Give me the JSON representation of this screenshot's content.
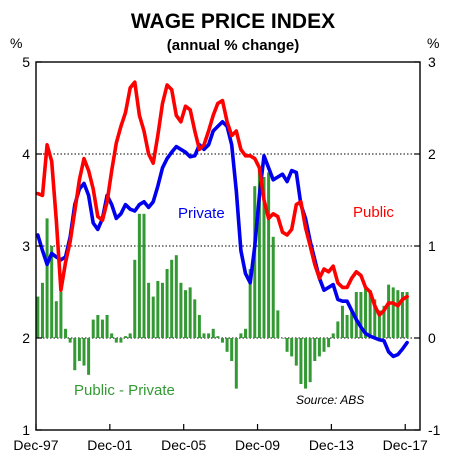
{
  "chart_data": {
    "type": "line",
    "title": "WAGE PRICE INDEX",
    "subtitle": "(annual % change)",
    "left_axis": {
      "unit": "%",
      "range": [
        1,
        5
      ],
      "ticks": [
        "1",
        "2",
        "3",
        "4",
        "5"
      ]
    },
    "right_axis": {
      "unit": "%",
      "range": [
        -1,
        3
      ],
      "ticks": [
        "-1",
        "0",
        "1",
        "2",
        "3"
      ]
    },
    "x_range": [
      1997.9,
      2018.7
    ],
    "x_ticks": [
      {
        "label": "Dec-97",
        "value": 1997.9
      },
      {
        "label": "Dec-01",
        "value": 2001.9
      },
      {
        "label": "Dec-05",
        "value": 2005.9
      },
      {
        "label": "Dec-09",
        "value": 2009.9
      },
      {
        "label": "Dec-13",
        "value": 2013.9
      },
      {
        "label": "Dec-17",
        "value": 2017.9
      }
    ],
    "gridlines": [
      2,
      3,
      4
    ],
    "source": "Source: ABS",
    "colors": {
      "public": "#ff0000",
      "private": "#0000ee",
      "difference": "#339933"
    },
    "series": [
      {
        "name": "Public",
        "axis": "left",
        "points": [
          [
            1998.0,
            3.57
          ],
          [
            1998.25,
            3.55
          ],
          [
            1998.5,
            4.1
          ],
          [
            1998.75,
            3.92
          ],
          [
            1999.0,
            3.28
          ],
          [
            1999.25,
            2.52
          ],
          [
            1999.5,
            2.82
          ],
          [
            1999.75,
            3.05
          ],
          [
            2000.0,
            3.38
          ],
          [
            2000.25,
            3.72
          ],
          [
            2000.5,
            3.95
          ],
          [
            2000.75,
            3.82
          ],
          [
            2001.0,
            3.62
          ],
          [
            2001.25,
            3.32
          ],
          [
            2001.5,
            3.28
          ],
          [
            2001.75,
            3.48
          ],
          [
            2002.0,
            3.82
          ],
          [
            2002.25,
            4.12
          ],
          [
            2002.5,
            4.3
          ],
          [
            2002.75,
            4.45
          ],
          [
            2003.0,
            4.72
          ],
          [
            2003.25,
            4.78
          ],
          [
            2003.5,
            4.42
          ],
          [
            2003.75,
            4.25
          ],
          [
            2004.0,
            4.0
          ],
          [
            2004.25,
            3.9
          ],
          [
            2004.5,
            4.2
          ],
          [
            2004.75,
            4.55
          ],
          [
            2005.0,
            4.75
          ],
          [
            2005.25,
            4.7
          ],
          [
            2005.5,
            4.42
          ],
          [
            2005.75,
            4.35
          ],
          [
            2006.0,
            4.52
          ],
          [
            2006.25,
            4.48
          ],
          [
            2006.5,
            4.25
          ],
          [
            2006.75,
            4.05
          ],
          [
            2007.0,
            4.1
          ],
          [
            2007.25,
            4.25
          ],
          [
            2007.5,
            4.42
          ],
          [
            2007.75,
            4.55
          ],
          [
            2008.0,
            4.58
          ],
          [
            2008.25,
            4.35
          ],
          [
            2008.5,
            4.2
          ],
          [
            2008.75,
            4.25
          ],
          [
            2009.0,
            4.05
          ],
          [
            2009.25,
            3.98
          ],
          [
            2009.5,
            3.98
          ],
          [
            2009.75,
            3.95
          ],
          [
            2010.0,
            3.85
          ],
          [
            2010.25,
            3.5
          ],
          [
            2010.5,
            3.3
          ],
          [
            2010.75,
            3.35
          ],
          [
            2011.0,
            3.32
          ],
          [
            2011.25,
            3.15
          ],
          [
            2011.5,
            3.12
          ],
          [
            2011.75,
            3.18
          ],
          [
            2012.0,
            3.45
          ],
          [
            2012.25,
            3.48
          ],
          [
            2012.5,
            3.2
          ],
          [
            2012.75,
            3.0
          ],
          [
            2013.0,
            2.8
          ],
          [
            2013.25,
            2.65
          ],
          [
            2013.5,
            2.75
          ],
          [
            2013.75,
            2.72
          ],
          [
            2014.0,
            2.78
          ],
          [
            2014.25,
            2.6
          ],
          [
            2014.5,
            2.55
          ],
          [
            2014.75,
            2.55
          ],
          [
            2015.0,
            2.65
          ],
          [
            2015.25,
            2.72
          ],
          [
            2015.5,
            2.68
          ],
          [
            2015.75,
            2.55
          ],
          [
            2016.0,
            2.5
          ],
          [
            2016.25,
            2.35
          ],
          [
            2016.5,
            2.25
          ],
          [
            2016.75,
            2.3
          ],
          [
            2017.0,
            2.38
          ],
          [
            2017.25,
            2.38
          ],
          [
            2017.5,
            2.35
          ],
          [
            2017.75,
            2.42
          ],
          [
            2018.0,
            2.45
          ]
        ]
      },
      {
        "name": "Private",
        "axis": "left",
        "points": [
          [
            1998.0,
            3.12
          ],
          [
            1998.25,
            2.95
          ],
          [
            1998.5,
            2.8
          ],
          [
            1998.75,
            2.92
          ],
          [
            1999.0,
            2.88
          ],
          [
            1999.25,
            2.85
          ],
          [
            1999.5,
            2.88
          ],
          [
            1999.75,
            3.1
          ],
          [
            2000.0,
            3.45
          ],
          [
            2000.25,
            3.62
          ],
          [
            2000.5,
            3.68
          ],
          [
            2000.75,
            3.55
          ],
          [
            2001.0,
            3.25
          ],
          [
            2001.25,
            3.18
          ],
          [
            2001.5,
            3.3
          ],
          [
            2001.75,
            3.55
          ],
          [
            2002.0,
            3.45
          ],
          [
            2002.25,
            3.3
          ],
          [
            2002.5,
            3.35
          ],
          [
            2002.75,
            3.45
          ],
          [
            2003.0,
            3.4
          ],
          [
            2003.25,
            3.38
          ],
          [
            2003.5,
            3.45
          ],
          [
            2003.75,
            3.48
          ],
          [
            2004.0,
            3.42
          ],
          [
            2004.25,
            3.48
          ],
          [
            2004.5,
            3.65
          ],
          [
            2004.75,
            3.85
          ],
          [
            2005.0,
            3.95
          ],
          [
            2005.25,
            4.02
          ],
          [
            2005.5,
            4.08
          ],
          [
            2005.75,
            4.05
          ],
          [
            2006.0,
            4.02
          ],
          [
            2006.25,
            3.97
          ],
          [
            2006.5,
            3.98
          ],
          [
            2006.75,
            4.1
          ],
          [
            2007.0,
            4.05
          ],
          [
            2007.25,
            4.1
          ],
          [
            2007.5,
            4.25
          ],
          [
            2007.75,
            4.3
          ],
          [
            2008.0,
            4.35
          ],
          [
            2008.25,
            4.3
          ],
          [
            2008.5,
            4.1
          ],
          [
            2008.75,
            3.6
          ],
          [
            2009.0,
            2.95
          ],
          [
            2009.25,
            2.7
          ],
          [
            2009.5,
            2.6
          ],
          [
            2009.75,
            3.0
          ],
          [
            2010.0,
            3.55
          ],
          [
            2010.25,
            3.98
          ],
          [
            2010.5,
            3.85
          ],
          [
            2010.75,
            3.72
          ],
          [
            2011.0,
            3.75
          ],
          [
            2011.25,
            3.78
          ],
          [
            2011.5,
            3.7
          ],
          [
            2011.75,
            3.82
          ],
          [
            2012.0,
            3.8
          ],
          [
            2012.25,
            3.45
          ],
          [
            2012.5,
            3.3
          ],
          [
            2012.75,
            3.05
          ],
          [
            2013.0,
            2.85
          ],
          [
            2013.25,
            2.65
          ],
          [
            2013.5,
            2.52
          ],
          [
            2013.75,
            2.55
          ],
          [
            2014.0,
            2.58
          ],
          [
            2014.25,
            2.42
          ],
          [
            2014.5,
            2.4
          ],
          [
            2014.75,
            2.4
          ],
          [
            2015.0,
            2.3
          ],
          [
            2015.25,
            2.2
          ],
          [
            2015.5,
            2.12
          ],
          [
            2015.75,
            2.05
          ],
          [
            2016.0,
            2.02
          ],
          [
            2016.25,
            2.0
          ],
          [
            2016.5,
            1.98
          ],
          [
            2016.75,
            1.97
          ],
          [
            2017.0,
            1.85
          ],
          [
            2017.25,
            1.8
          ],
          [
            2017.5,
            1.82
          ],
          [
            2017.75,
            1.88
          ],
          [
            2018.0,
            1.95
          ]
        ]
      },
      {
        "name": "Public - Private",
        "axis": "right",
        "type": "bar",
        "points": [
          [
            1998.0,
            0.45
          ],
          [
            1998.25,
            0.6
          ],
          [
            1998.5,
            1.3
          ],
          [
            1998.75,
            1.0
          ],
          [
            1999.0,
            0.4
          ],
          [
            1999.25,
            0.5
          ],
          [
            1999.5,
            0.1
          ],
          [
            1999.75,
            -0.05
          ],
          [
            2000.0,
            -0.35
          ],
          [
            2000.25,
            -0.25
          ],
          [
            2000.5,
            -0.3
          ],
          [
            2000.75,
            -0.4
          ],
          [
            2001.0,
            0.2
          ],
          [
            2001.25,
            0.25
          ],
          [
            2001.5,
            0.2
          ],
          [
            2001.75,
            0.25
          ],
          [
            2002.0,
            0.05
          ],
          [
            2002.25,
            -0.05
          ],
          [
            2002.5,
            -0.05
          ],
          [
            2002.75,
            0.02
          ],
          [
            2003.0,
            0.05
          ],
          [
            2003.25,
            0.85
          ],
          [
            2003.5,
            1.35
          ],
          [
            2003.75,
            1.35
          ],
          [
            2004.0,
            0.6
          ],
          [
            2004.25,
            0.45
          ],
          [
            2004.5,
            0.62
          ],
          [
            2004.75,
            0.6
          ],
          [
            2005.0,
            0.75
          ],
          [
            2005.25,
            0.85
          ],
          [
            2005.5,
            0.9
          ],
          [
            2005.75,
            0.6
          ],
          [
            2006.0,
            0.52
          ],
          [
            2006.25,
            0.55
          ],
          [
            2006.5,
            0.42
          ],
          [
            2006.75,
            0.25
          ],
          [
            2007.0,
            0.05
          ],
          [
            2007.25,
            0.05
          ],
          [
            2007.5,
            0.1
          ],
          [
            2007.75,
            0.02
          ],
          [
            2008.0,
            -0.05
          ],
          [
            2008.25,
            -0.15
          ],
          [
            2008.5,
            -0.25
          ],
          [
            2008.75,
            -0.55
          ],
          [
            2009.0,
            0.05
          ],
          [
            2009.25,
            0.1
          ],
          [
            2009.5,
            0.75
          ],
          [
            2009.75,
            1.65
          ],
          [
            2010.0,
            1.85
          ],
          [
            2010.25,
            1.75
          ],
          [
            2010.5,
            1.8
          ],
          [
            2010.75,
            1.1
          ],
          [
            2011.0,
            0.3
          ],
          [
            2011.25,
            0.0
          ],
          [
            2011.5,
            -0.15
          ],
          [
            2011.75,
            -0.2
          ],
          [
            2012.0,
            -0.3
          ],
          [
            2012.25,
            -0.5
          ],
          [
            2012.5,
            -0.55
          ],
          [
            2012.75,
            -0.48
          ],
          [
            2013.0,
            -0.25
          ],
          [
            2013.25,
            -0.2
          ],
          [
            2013.5,
            -0.15
          ],
          [
            2013.75,
            -0.1
          ],
          [
            2014.0,
            0.05
          ],
          [
            2014.25,
            0.18
          ],
          [
            2014.5,
            0.35
          ],
          [
            2014.75,
            0.25
          ],
          [
            2015.0,
            0.3
          ],
          [
            2015.25,
            0.5
          ],
          [
            2015.5,
            0.5
          ],
          [
            2015.75,
            0.55
          ],
          [
            2016.0,
            0.52
          ],
          [
            2016.25,
            0.42
          ],
          [
            2016.5,
            0.3
          ],
          [
            2016.75,
            0.35
          ],
          [
            2017.0,
            0.58
          ],
          [
            2017.25,
            0.55
          ],
          [
            2017.5,
            0.52
          ],
          [
            2017.75,
            0.5
          ],
          [
            2018.0,
            0.5
          ]
        ]
      }
    ]
  }
}
